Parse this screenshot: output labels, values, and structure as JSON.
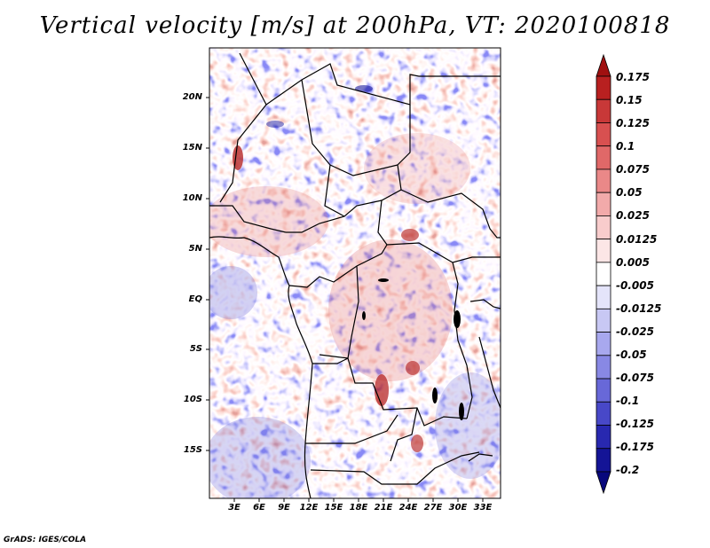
{
  "title": "Vertical velocity [m/s] at 200hPa, VT: 2020100818",
  "credit": "GrADS: IGES/COLA",
  "lat_labels": [
    "20N",
    "15N",
    "10N",
    "5N",
    "EQ",
    "5S",
    "10S",
    "15S"
  ],
  "lon_labels": [
    "3E",
    "6E",
    "9E",
    "12E",
    "15E",
    "18E",
    "21E",
    "24E",
    "27E",
    "30E",
    "33E"
  ],
  "colorbar": {
    "labels": [
      "0.175",
      "0.15",
      "0.125",
      "0.1",
      "0.075",
      "0.05",
      "0.025",
      "0.0125",
      "0.005",
      "-0.005",
      "-0.0125",
      "-0.025",
      "-0.05",
      "-0.075",
      "-0.1",
      "-0.125",
      "-0.175",
      "-0.2"
    ],
    "colors": [
      "#a01010",
      "#b82020",
      "#c83838",
      "#d85050",
      "#e06868",
      "#ea8888",
      "#f2aaaa",
      "#f8cccc",
      "#fce6e6",
      "#ffffff",
      "#e4e4fa",
      "#c8c8f4",
      "#a8a8ee",
      "#8888e4",
      "#6868d8",
      "#4848c8",
      "#2828b0",
      "#141496",
      "#08087c"
    ]
  }
}
